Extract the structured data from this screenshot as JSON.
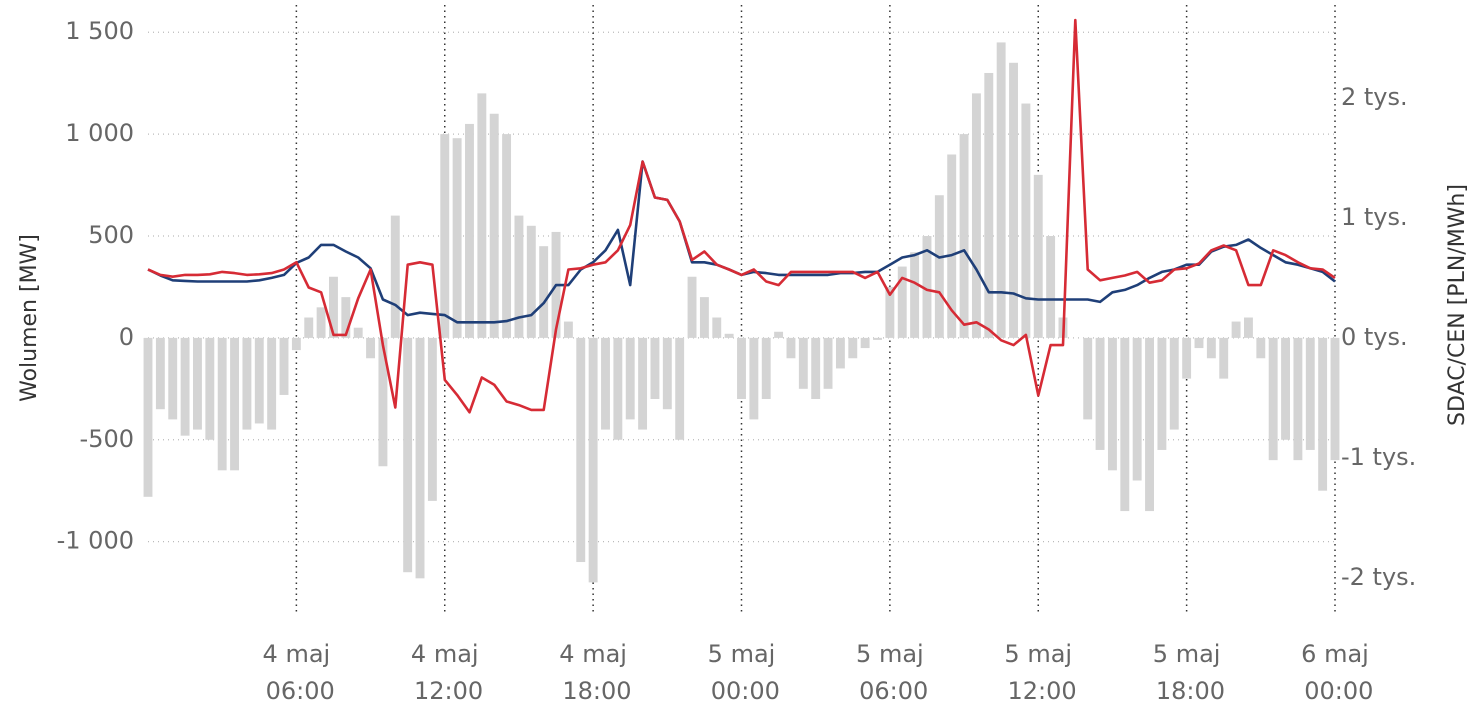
{
  "chart_data": {
    "type": "combo",
    "y_label": "Wolumen [MW]",
    "y2_label": "SDAC/CEN [PLN/MWh]",
    "x": [
      "4 maj 00:00",
      "4 maj 00:30",
      "4 maj 01:00",
      "4 maj 01:30",
      "4 maj 02:00",
      "4 maj 02:30",
      "4 maj 03:00",
      "4 maj 03:30",
      "4 maj 04:00",
      "4 maj 04:30",
      "4 maj 05:00",
      "4 maj 05:30",
      "4 maj 06:00",
      "4 maj 06:30",
      "4 maj 07:00",
      "4 maj 07:30",
      "4 maj 08:00",
      "4 maj 08:30",
      "4 maj 09:00",
      "4 maj 09:30",
      "4 maj 10:00",
      "4 maj 10:30",
      "4 maj 11:00",
      "4 maj 11:30",
      "4 maj 12:00",
      "4 maj 12:30",
      "4 maj 13:00",
      "4 maj 13:30",
      "4 maj 14:00",
      "4 maj 14:30",
      "4 maj 15:00",
      "4 maj 15:30",
      "4 maj 16:00",
      "4 maj 16:30",
      "4 maj 17:00",
      "4 maj 17:30",
      "4 maj 18:00",
      "4 maj 18:30",
      "4 maj 19:00",
      "4 maj 19:30",
      "4 maj 20:00",
      "4 maj 20:30",
      "4 maj 21:00",
      "4 maj 21:30",
      "4 maj 22:00",
      "4 maj 22:30",
      "4 maj 23:00",
      "4 maj 23:30",
      "5 maj 00:00",
      "5 maj 00:30",
      "5 maj 01:00",
      "5 maj 01:30",
      "5 maj 02:00",
      "5 maj 02:30",
      "5 maj 03:00",
      "5 maj 03:30",
      "5 maj 04:00",
      "5 maj 04:30",
      "5 maj 05:00",
      "5 maj 05:30",
      "5 maj 06:00",
      "5 maj 06:30",
      "5 maj 07:00",
      "5 maj 07:30",
      "5 maj 08:00",
      "5 maj 08:30",
      "5 maj 09:00",
      "5 maj 09:30",
      "5 maj 10:00",
      "5 maj 10:30",
      "5 maj 11:00",
      "5 maj 11:30",
      "5 maj 12:00",
      "5 maj 12:30",
      "5 maj 13:00",
      "5 maj 13:30",
      "5 maj 14:00",
      "5 maj 14:30",
      "5 maj 15:00",
      "5 maj 15:30",
      "5 maj 16:00",
      "5 maj 16:30",
      "5 maj 17:00",
      "5 maj 17:30",
      "5 maj 18:00",
      "5 maj 18:30",
      "5 maj 19:00",
      "5 maj 19:30",
      "5 maj 20:00",
      "5 maj 20:30",
      "5 maj 21:00",
      "5 maj 21:30",
      "5 maj 22:00",
      "5 maj 22:30",
      "5 maj 23:00",
      "5 maj 23:30",
      "6 maj 00:00"
    ],
    "xticks": [
      "4 maj 06:00",
      "4 maj 12:00",
      "4 maj 18:00",
      "5 maj 00:00",
      "5 maj 06:00",
      "5 maj 12:00",
      "5 maj 18:00",
      "6 maj 00:00"
    ],
    "series": [
      {
        "kind": "bar",
        "axis": "y",
        "color": "#d4d4d4",
        "values": [
          -780,
          -350,
          -400,
          -480,
          -450,
          -500,
          -650,
          -650,
          -450,
          -420,
          -450,
          -280,
          -60,
          100,
          150,
          300,
          200,
          50,
          -100,
          -630,
          600,
          -1150,
          -1180,
          -800,
          1000,
          980,
          1050,
          1200,
          1100,
          1000,
          600,
          550,
          450,
          520,
          80,
          -1100,
          -1200,
          -450,
          -500,
          -400,
          -450,
          -300,
          -350,
          -500,
          300,
          200,
          100,
          20,
          -300,
          -400,
          -300,
          30,
          -100,
          -250,
          -300,
          -250,
          -150,
          -100,
          -50,
          -10,
          250,
          350,
          420,
          500,
          700,
          900,
          1000,
          1200,
          1300,
          1450,
          1350,
          1150,
          800,
          500,
          100,
          0,
          -400,
          -550,
          -650,
          -850,
          -700,
          -850,
          -550,
          -450,
          -200,
          -50,
          -100,
          -200,
          80,
          100,
          -100,
          -600,
          -500,
          -600,
          -550,
          -750,
          -600
        ]
      },
      {
        "kind": "line",
        "axis": "y2",
        "color": "#1f3f78",
        "values": [
          570,
          520,
          480,
          475,
          470,
          470,
          470,
          470,
          470,
          480,
          500,
          525,
          625,
          670,
          775,
          775,
          720,
          670,
          580,
          320,
          275,
          190,
          210,
          200,
          190,
          130,
          130,
          130,
          130,
          140,
          170,
          190,
          290,
          440,
          440,
          570,
          630,
          730,
          900,
          440,
          1470,
          1170,
          1150,
          970,
          630,
          630,
          610,
          570,
          525,
          550,
          540,
          525,
          525,
          525,
          525,
          525,
          540,
          540,
          550,
          550,
          610,
          670,
          690,
          730,
          670,
          690,
          730,
          570,
          380,
          380,
          370,
          330,
          320,
          320,
          320,
          320,
          320,
          300,
          380,
          400,
          440,
          500,
          550,
          570,
          610,
          610,
          720,
          760,
          775,
          820,
          750,
          690,
          630,
          610,
          580,
          550,
          470
        ]
      },
      {
        "kind": "line",
        "axis": "y2",
        "color": "#d62b35",
        "values": [
          570,
          525,
          510,
          525,
          525,
          530,
          550,
          540,
          525,
          530,
          540,
          570,
          630,
          420,
          380,
          25,
          25,
          330,
          570,
          -60,
          -580,
          610,
          630,
          610,
          -350,
          -475,
          -620,
          -330,
          -390,
          -530,
          -560,
          -600,
          -600,
          70,
          570,
          580,
          610,
          630,
          730,
          940,
          1470,
          1170,
          1150,
          970,
          650,
          720,
          610,
          570,
          525,
          570,
          470,
          440,
          550,
          550,
          550,
          550,
          550,
          550,
          500,
          550,
          360,
          500,
          460,
          400,
          380,
          230,
          110,
          130,
          70,
          -20,
          -60,
          25,
          -480,
          -60,
          -60,
          2650,
          570,
          480,
          500,
          520,
          550,
          460,
          480,
          570,
          580,
          620,
          730,
          770,
          730,
          440,
          440,
          730,
          690,
          630,
          580,
          570,
          500
        ]
      }
    ],
    "ylim": [
      -1360,
      1560
    ],
    "yticks": [
      {
        "value": -1000,
        "label": "-1 000"
      },
      -500,
      0,
      500,
      {
        "value": 1000,
        "label": "1 000"
      },
      {
        "value": 1500,
        "label": "1 500"
      }
    ],
    "y2lim": [
      -2310,
      2650
    ],
    "y2ticks": [
      {
        "value": -2000,
        "label": "-2 tys."
      },
      {
        "value": -1000,
        "label": "-1 tys."
      },
      {
        "value": 0,
        "label": "0 tys."
      },
      {
        "value": 1000,
        "label": "1 tys."
      },
      {
        "value": 2000,
        "label": "2 tys."
      }
    ],
    "grid": true
  }
}
